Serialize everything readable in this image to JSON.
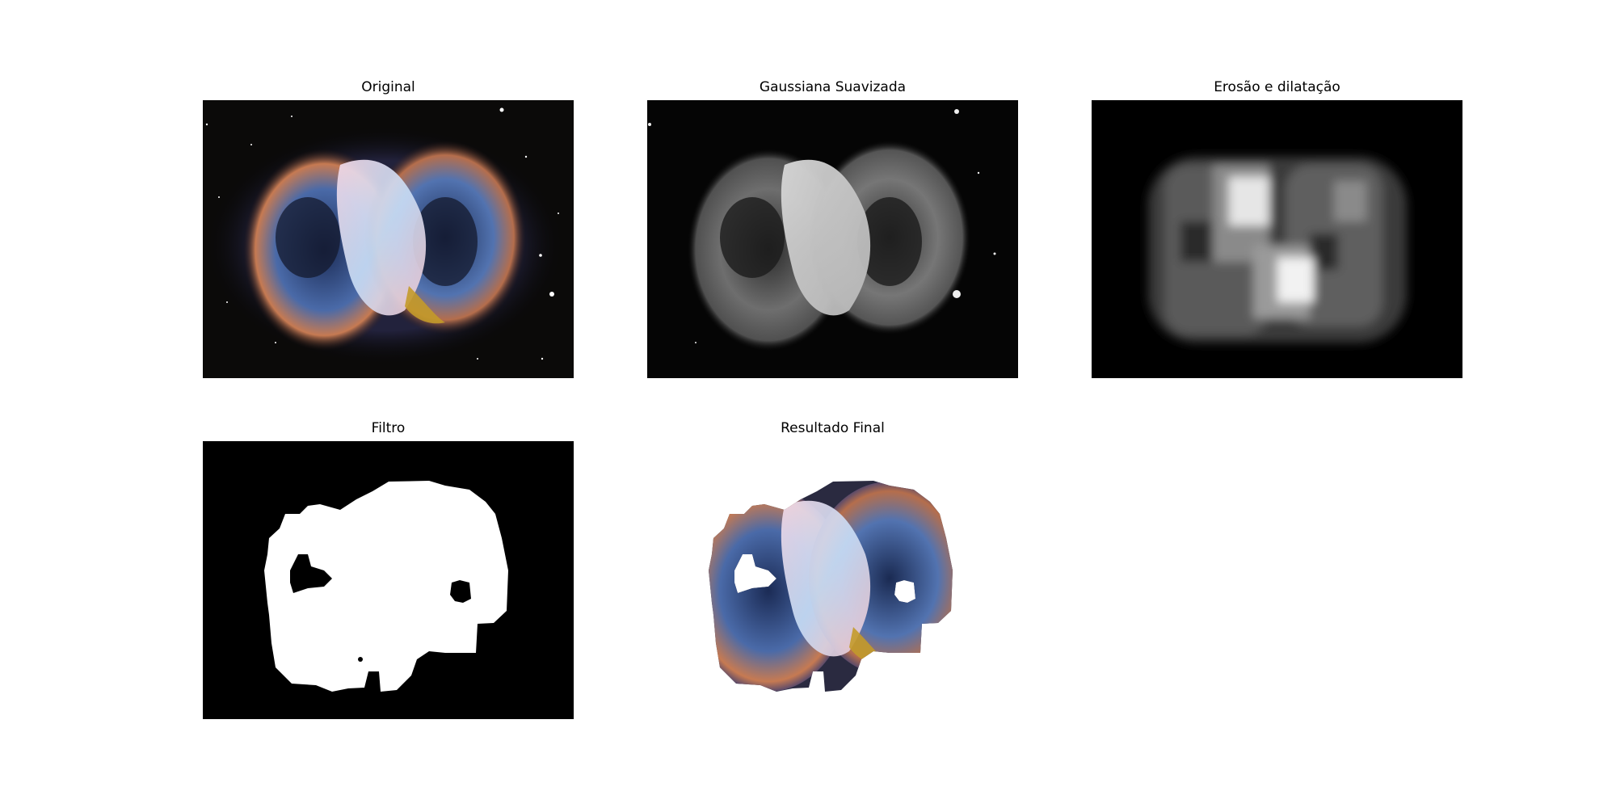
{
  "figure": {
    "panels": [
      {
        "title": "Original",
        "image": "nebula-color-image"
      },
      {
        "title": "Gaussiana Suavizada",
        "image": "nebula-grayscale-blurred-image"
      },
      {
        "title": "Erosão e dilatação",
        "image": "nebula-morphology-image"
      },
      {
        "title": "Filtro",
        "image": "binary-mask-image"
      },
      {
        "title": "Resultado Final",
        "image": "masked-nebula-image"
      }
    ]
  }
}
